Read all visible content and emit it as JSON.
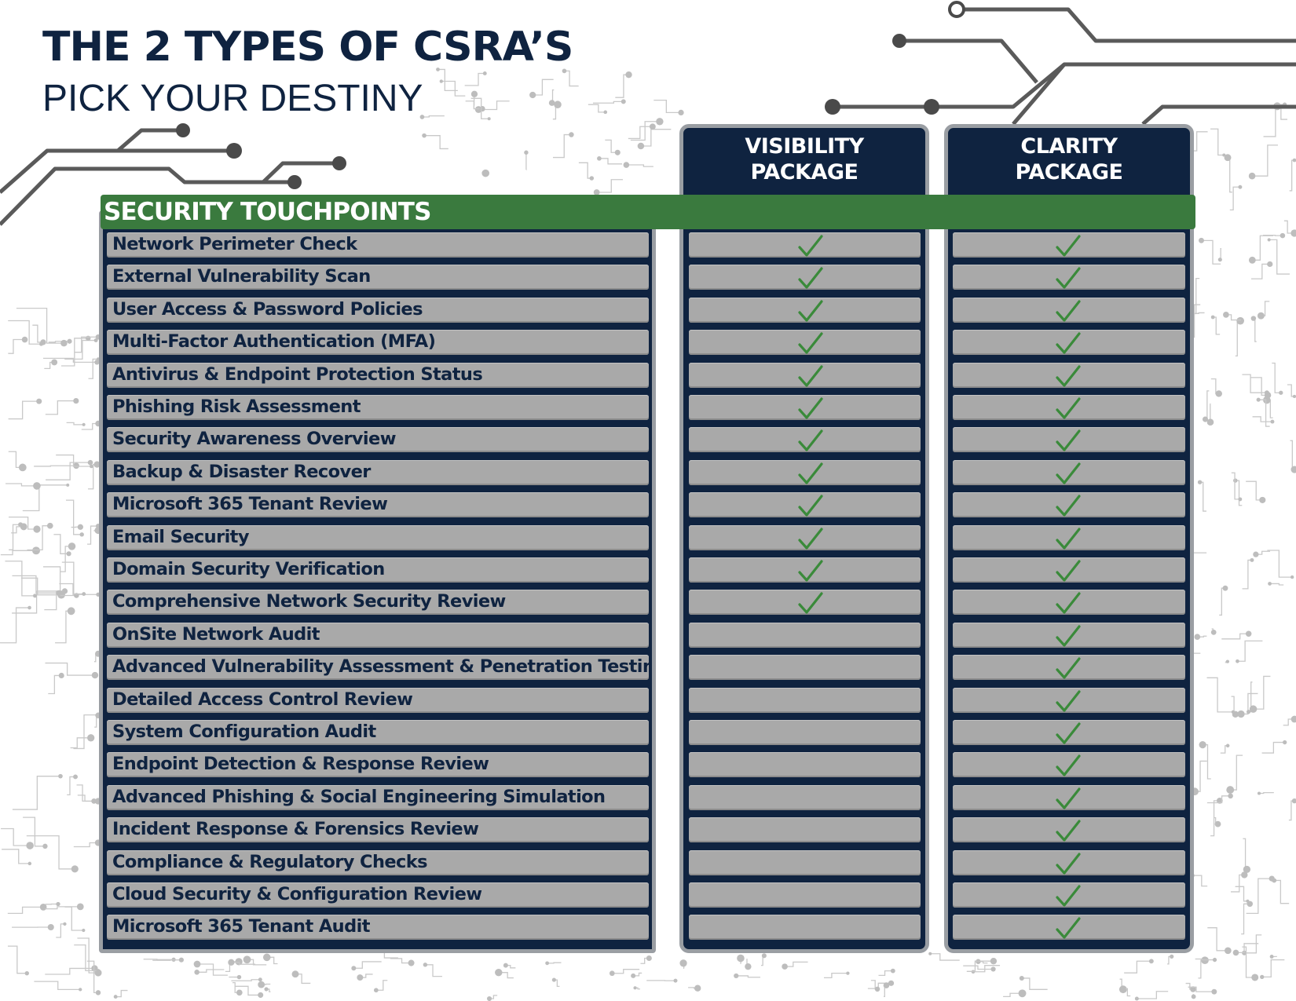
{
  "header": {
    "title": "THE 2 TYPES OF CSRA’S",
    "subtitle": "PICK YOUR DESTINY"
  },
  "section_label": "SECURITY TOUCHPOINTS",
  "packages": [
    {
      "line1": "VISIBILITY",
      "line2": "PACKAGE"
    },
    {
      "line1": "CLARITY",
      "line2": "PACKAGE"
    }
  ],
  "colors": {
    "navy": "#0f2340",
    "green": "#3a7a3e",
    "row_gray": "#a9a9a9",
    "check_green": "#3a8a3a",
    "circuit_gray": "#5a5a5a"
  },
  "rows": [
    {
      "label": "Network Perimeter Check",
      "visibility": true,
      "clarity": true
    },
    {
      "label": "External Vulnerability Scan",
      "visibility": true,
      "clarity": true
    },
    {
      "label": "User Access & Password Policies",
      "visibility": true,
      "clarity": true
    },
    {
      "label": "Multi-Factor Authentication (MFA)",
      "visibility": true,
      "clarity": true
    },
    {
      "label": "Antivirus & Endpoint Protection Status",
      "visibility": true,
      "clarity": true
    },
    {
      "label": "Phishing Risk Assessment",
      "visibility": true,
      "clarity": true
    },
    {
      "label": "Security Awareness Overview",
      "visibility": true,
      "clarity": true
    },
    {
      "label": "Backup & Disaster Recover",
      "visibility": true,
      "clarity": true
    },
    {
      "label": "Microsoft 365 Tenant Review",
      "visibility": true,
      "clarity": true
    },
    {
      "label": "Email Security",
      "visibility": true,
      "clarity": true
    },
    {
      "label": "Domain Security Verification",
      "visibility": true,
      "clarity": true
    },
    {
      "label": "Comprehensive Network Security Review",
      "visibility": true,
      "clarity": true
    },
    {
      "label": "OnSite Network Audit",
      "visibility": false,
      "clarity": true
    },
    {
      "label": "Advanced Vulnerability Assessment & Penetration Testing",
      "visibility": false,
      "clarity": true
    },
    {
      "label": "Detailed Access Control Review",
      "visibility": false,
      "clarity": true
    },
    {
      "label": "System Configuration Audit",
      "visibility": false,
      "clarity": true
    },
    {
      "label": "Endpoint Detection & Response Review",
      "visibility": false,
      "clarity": true
    },
    {
      "label": "Advanced Phishing & Social Engineering Simulation",
      "visibility": false,
      "clarity": true
    },
    {
      "label": "Incident Response & Forensics Review",
      "visibility": false,
      "clarity": true
    },
    {
      "label": "Compliance & Regulatory Checks",
      "visibility": false,
      "clarity": true
    },
    {
      "label": "Cloud Security & Configuration Review",
      "visibility": false,
      "clarity": true
    },
    {
      "label": "Microsoft 365 Tenant Audit",
      "visibility": false,
      "clarity": true
    }
  ]
}
